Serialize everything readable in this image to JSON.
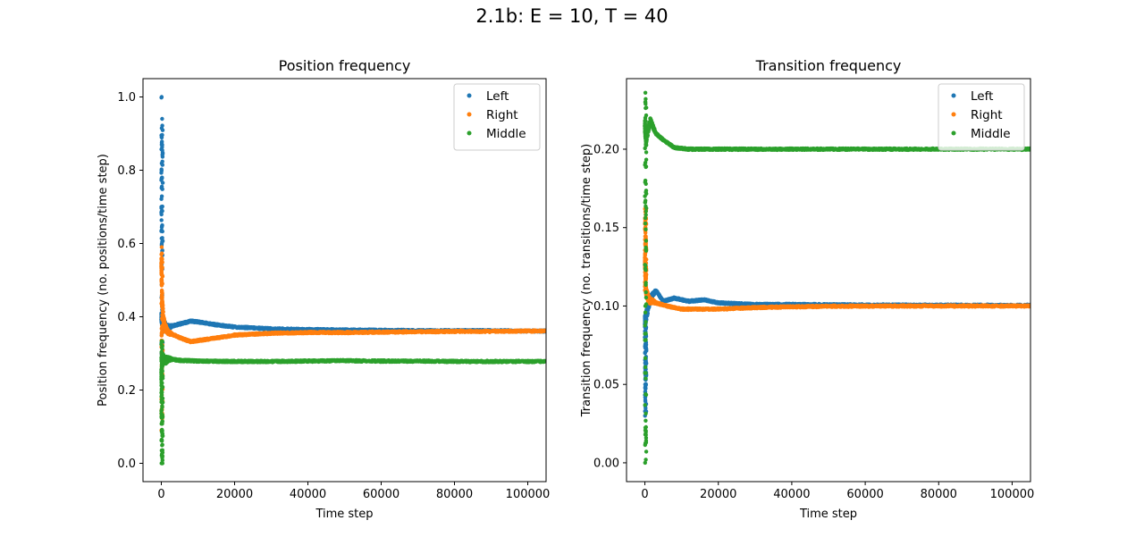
{
  "figure": {
    "suptitle": "2.1b: E = 10, T = 40"
  },
  "colors": {
    "Left": "#1f77b4",
    "Right": "#ff7f0e",
    "Middle": "#2ca02c"
  },
  "chart_data": [
    {
      "type": "scatter",
      "title": "Position frequency",
      "xlabel": "Time step",
      "ylabel": "Position frequency (no. positions/time step)",
      "xlim": [
        -5000,
        105000
      ],
      "ylim": [
        -0.05,
        1.05
      ],
      "xticks": [
        0,
        20000,
        40000,
        60000,
        80000,
        100000
      ],
      "xtick_labels": [
        "0",
        "20000",
        "40000",
        "60000",
        "80000",
        "100000"
      ],
      "yticks": [
        0.0,
        0.2,
        0.4,
        0.6,
        0.8,
        1.0
      ],
      "ytick_labels": [
        "0.0",
        "0.2",
        "0.4",
        "0.6",
        "0.8",
        "1.0"
      ],
      "legend_position": "upper right",
      "legend": [
        "Left",
        "Right",
        "Middle"
      ],
      "series": [
        {
          "name": "Left",
          "spikes": [
            1.0,
            0.875,
            0.857,
            0.778,
            0.7,
            0.636,
            0.5,
            0.4,
            0.35,
            0.3
          ],
          "points": [
            [
              0,
              0.4
            ],
            [
              500,
              0.38
            ],
            [
              1500,
              0.37
            ],
            [
              3000,
              0.375
            ],
            [
              5000,
              0.38
            ],
            [
              8000,
              0.388
            ],
            [
              10000,
              0.386
            ],
            [
              15000,
              0.378
            ],
            [
              20000,
              0.372
            ],
            [
              30000,
              0.367
            ],
            [
              40000,
              0.365
            ],
            [
              50000,
              0.364
            ],
            [
              60000,
              0.363
            ],
            [
              70000,
              0.362
            ],
            [
              80000,
              0.362
            ],
            [
              90000,
              0.362
            ],
            [
              100000,
              0.361
            ]
          ]
        },
        {
          "name": "Right",
          "spikes": [
            0.59,
            0.57,
            0.5,
            0.45,
            0.3,
            0.2,
            0.167,
            0.09
          ],
          "points": [
            [
              0,
              0.55
            ],
            [
              200,
              0.45
            ],
            [
              600,
              0.39
            ],
            [
              1500,
              0.36
            ],
            [
              3000,
              0.352
            ],
            [
              5000,
              0.343
            ],
            [
              8000,
              0.332
            ],
            [
              10000,
              0.335
            ],
            [
              15000,
              0.342
            ],
            [
              20000,
              0.35
            ],
            [
              30000,
              0.355
            ],
            [
              40000,
              0.357
            ],
            [
              50000,
              0.357
            ],
            [
              60000,
              0.358
            ],
            [
              70000,
              0.359
            ],
            [
              80000,
              0.36
            ],
            [
              90000,
              0.36
            ],
            [
              100000,
              0.361
            ]
          ]
        },
        {
          "name": "Middle",
          "spikes": [
            0.333,
            0.286,
            0.25,
            0.222,
            0.2,
            0.182,
            0.143,
            0.125,
            0.0
          ],
          "points": [
            [
              0,
              0.24
            ],
            [
              300,
              0.29
            ],
            [
              800,
              0.28
            ],
            [
              2000,
              0.285
            ],
            [
              5000,
              0.281
            ],
            [
              10000,
              0.279
            ],
            [
              20000,
              0.278
            ],
            [
              30000,
              0.278
            ],
            [
              40000,
              0.279
            ],
            [
              50000,
              0.28
            ],
            [
              60000,
              0.279
            ],
            [
              70000,
              0.279
            ],
            [
              80000,
              0.278
            ],
            [
              90000,
              0.278
            ],
            [
              100000,
              0.278
            ]
          ]
        }
      ]
    },
    {
      "type": "scatter",
      "title": "Transition frequency",
      "xlabel": "Time step",
      "ylabel": "Transition frequency (no. transitions/time step)",
      "xlim": [
        -5000,
        105000
      ],
      "ylim": [
        -0.012,
        0.245
      ],
      "xticks": [
        0,
        20000,
        40000,
        60000,
        80000,
        100000
      ],
      "xtick_labels": [
        "0",
        "20000",
        "40000",
        "60000",
        "80000",
        "100000"
      ],
      "yticks": [
        0.0,
        0.05,
        0.1,
        0.15,
        0.2
      ],
      "ytick_labels": [
        "0.00",
        "0.05",
        "0.10",
        "0.15",
        "0.20"
      ],
      "legend_position": "upper right",
      "legend": [
        "Left",
        "Right",
        "Middle"
      ],
      "series": [
        {
          "name": "Left",
          "spikes": [
            0.03,
            0.04,
            0.05,
            0.06,
            0.07,
            0.08,
            0.09
          ],
          "points": [
            [
              0,
              0.09
            ],
            [
              500,
              0.095
            ],
            [
              1500,
              0.105
            ],
            [
              3000,
              0.11
            ],
            [
              5000,
              0.103
            ],
            [
              8000,
              0.105
            ],
            [
              12000,
              0.103
            ],
            [
              16000,
              0.104
            ],
            [
              20000,
              0.102
            ],
            [
              30000,
              0.101
            ],
            [
              40000,
              0.101
            ],
            [
              50000,
              0.1008
            ],
            [
              60000,
              0.1007
            ],
            [
              70000,
              0.1006
            ],
            [
              80000,
              0.1005
            ],
            [
              90000,
              0.1005
            ],
            [
              100000,
              0.1004
            ]
          ]
        },
        {
          "name": "Right",
          "spikes": [
            0.162,
            0.155,
            0.14,
            0.125,
            0.11
          ],
          "points": [
            [
              0,
              0.13
            ],
            [
              300,
              0.11
            ],
            [
              1000,
              0.104
            ],
            [
              3000,
              0.102
            ],
            [
              6000,
              0.1
            ],
            [
              10000,
              0.098
            ],
            [
              15000,
              0.098
            ],
            [
              20000,
              0.098
            ],
            [
              30000,
              0.099
            ],
            [
              40000,
              0.0995
            ],
            [
              50000,
              0.0998
            ],
            [
              60000,
              0.0999
            ],
            [
              70000,
              0.1
            ],
            [
              80000,
              0.1
            ],
            [
              90000,
              0.1
            ],
            [
              100000,
              0.1
            ]
          ]
        },
        {
          "name": "Middle",
          "spikes": [
            0.236,
            0.23,
            0.22,
            0.19,
            0.18,
            0.166,
            0.0
          ],
          "points": [
            [
              0,
              0.215
            ],
            [
              300,
              0.205
            ],
            [
              800,
              0.212
            ],
            [
              1500,
              0.218
            ],
            [
              3000,
              0.21
            ],
            [
              5000,
              0.206
            ],
            [
              8000,
              0.201
            ],
            [
              12000,
              0.2
            ],
            [
              20000,
              0.2
            ],
            [
              30000,
              0.2
            ],
            [
              40000,
              0.2
            ],
            [
              50000,
              0.2
            ],
            [
              60000,
              0.2
            ],
            [
              70000,
              0.2
            ],
            [
              80000,
              0.2
            ],
            [
              90000,
              0.2
            ],
            [
              100000,
              0.2
            ]
          ]
        }
      ]
    }
  ]
}
